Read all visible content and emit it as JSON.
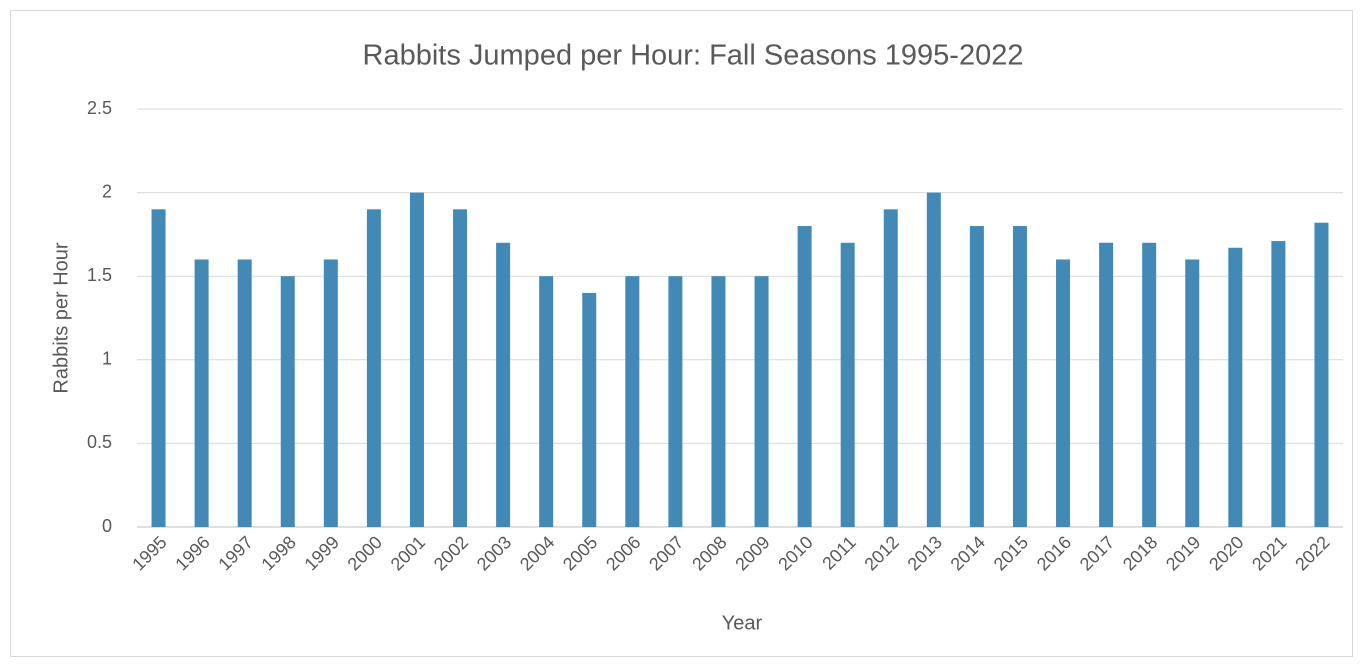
{
  "chart_data": {
    "type": "bar",
    "title": "Rabbits Jumped per Hour: Fall Seasons 1995-2022",
    "x_label": "Year",
    "y_label": "Rabbits per Hour",
    "categories": [
      "1995",
      "1996",
      "1997",
      "1998",
      "1999",
      "2000",
      "2001",
      "2002",
      "2003",
      "2004",
      "2005",
      "2006",
      "2007",
      "2008",
      "2009",
      "2010",
      "2011",
      "2012",
      "2013",
      "2014",
      "2015",
      "2016",
      "2017",
      "2018",
      "2019",
      "2020",
      "2021",
      "2022"
    ],
    "values": [
      1.9,
      1.6,
      1.6,
      1.5,
      1.6,
      1.9,
      2.0,
      1.9,
      1.7,
      1.5,
      1.4,
      1.5,
      1.5,
      1.5,
      1.5,
      1.8,
      1.7,
      1.9,
      2.0,
      1.8,
      1.8,
      1.6,
      1.7,
      1.7,
      1.6,
      1.67,
      1.71,
      1.82
    ],
    "color": "#4289b5",
    "ylim": [
      0,
      2.5
    ],
    "yticks": [
      0,
      0.5,
      1,
      1.5,
      2,
      2.5
    ],
    "grid": true
  }
}
